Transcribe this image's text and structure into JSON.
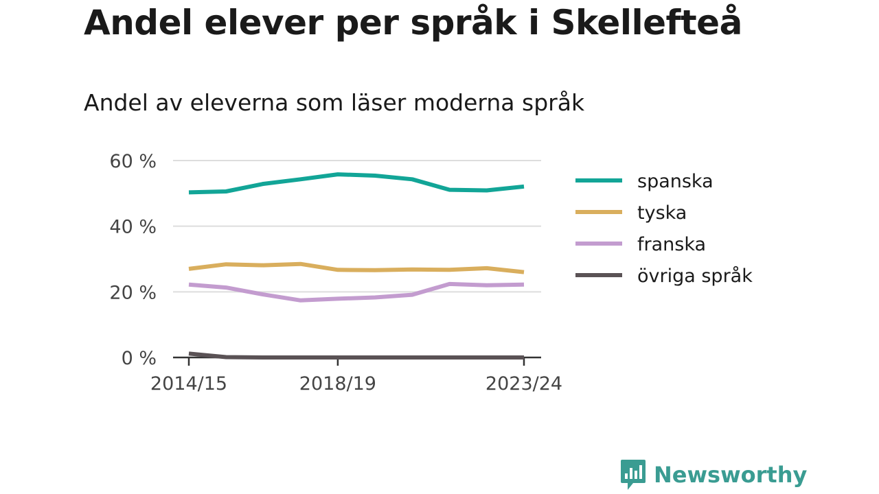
{
  "header": {
    "title": "Andel elever per språk i Skellefteå",
    "subtitle": "Andel av eleverna som läser moderna språk"
  },
  "brand": {
    "name": "Newsworthy",
    "icon": "newsworthy-logo-icon",
    "color": "#3a9c92"
  },
  "chart_data": {
    "type": "line",
    "x": [
      "2014/15",
      "2015/16",
      "2016/17",
      "2017/18",
      "2018/19",
      "2019/20",
      "2020/21",
      "2021/22",
      "2022/23",
      "2023/24"
    ],
    "x_tick_labels": [
      "2014/15",
      "2018/19",
      "2023/24"
    ],
    "ylim": [
      0,
      60
    ],
    "y_ticks": [
      0,
      20,
      40,
      60
    ],
    "y_tick_labels": [
      "0 %",
      "20 %",
      "40 %",
      "60 %"
    ],
    "grid": true,
    "legend_position": "right",
    "series": [
      {
        "name": "spanska",
        "color": "#12a597",
        "values": [
          50.3,
          50.6,
          52.9,
          54.3,
          55.8,
          55.4,
          54.3,
          51.1,
          50.9,
          52.1
        ]
      },
      {
        "name": "tyska",
        "color": "#d9ae5d",
        "values": [
          27.0,
          28.4,
          28.1,
          28.5,
          26.7,
          26.6,
          26.8,
          26.7,
          27.2,
          26.0
        ]
      },
      {
        "name": "franska",
        "color": "#c39ccf",
        "values": [
          22.2,
          21.3,
          19.2,
          17.4,
          17.9,
          18.3,
          19.1,
          22.4,
          22.0,
          22.2
        ]
      },
      {
        "name": "övriga språk",
        "color": "#5a5255",
        "values": [
          1.2,
          0.1,
          0,
          0,
          0,
          0,
          0,
          0,
          0,
          0
        ]
      }
    ]
  }
}
